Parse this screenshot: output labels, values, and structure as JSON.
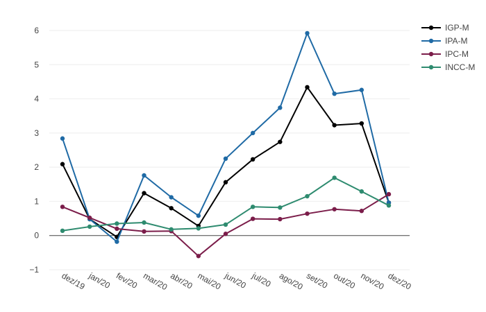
{
  "chart_data": {
    "type": "line",
    "title": "",
    "xlabel": "",
    "ylabel": "",
    "categories": [
      "dez/19",
      "jan/20",
      "fev/20",
      "mar/20",
      "abr/20",
      "mai/20",
      "jun/20",
      "jul/20",
      "ago/20",
      "set/20",
      "out/20",
      "nov/20",
      "dez/20"
    ],
    "yticks": [
      -1,
      0,
      1,
      2,
      3,
      4,
      5,
      6
    ],
    "ytick_labels": [
      "−1",
      "0",
      "1",
      "2",
      "3",
      "4",
      "5",
      "6"
    ],
    "ylim": [
      -1,
      6.3
    ],
    "grid": true,
    "legend_position": "top-right",
    "series": [
      {
        "name": "IGP-M",
        "color": "#000000",
        "values": [
          2.09,
          0.48,
          -0.04,
          1.24,
          0.8,
          0.28,
          1.56,
          2.23,
          2.74,
          4.34,
          3.23,
          3.28,
          0.96
        ]
      },
      {
        "name": "IPA-M",
        "color": "#1f6aa5",
        "values": [
          2.84,
          0.48,
          -0.18,
          1.76,
          1.12,
          0.58,
          2.25,
          3.0,
          3.74,
          5.92,
          4.15,
          4.26,
          0.96
        ]
      },
      {
        "name": "IPC-M",
        "color": "#7b1d4a",
        "values": [
          0.84,
          0.52,
          0.2,
          0.12,
          0.13,
          -0.6,
          0.05,
          0.49,
          0.48,
          0.64,
          0.77,
          0.72,
          1.21
        ]
      },
      {
        "name": "INCC-M",
        "color": "#2e8b6f",
        "values": [
          0.14,
          0.26,
          0.35,
          0.38,
          0.18,
          0.21,
          0.32,
          0.84,
          0.82,
          1.15,
          1.69,
          1.29,
          0.88
        ]
      }
    ]
  }
}
